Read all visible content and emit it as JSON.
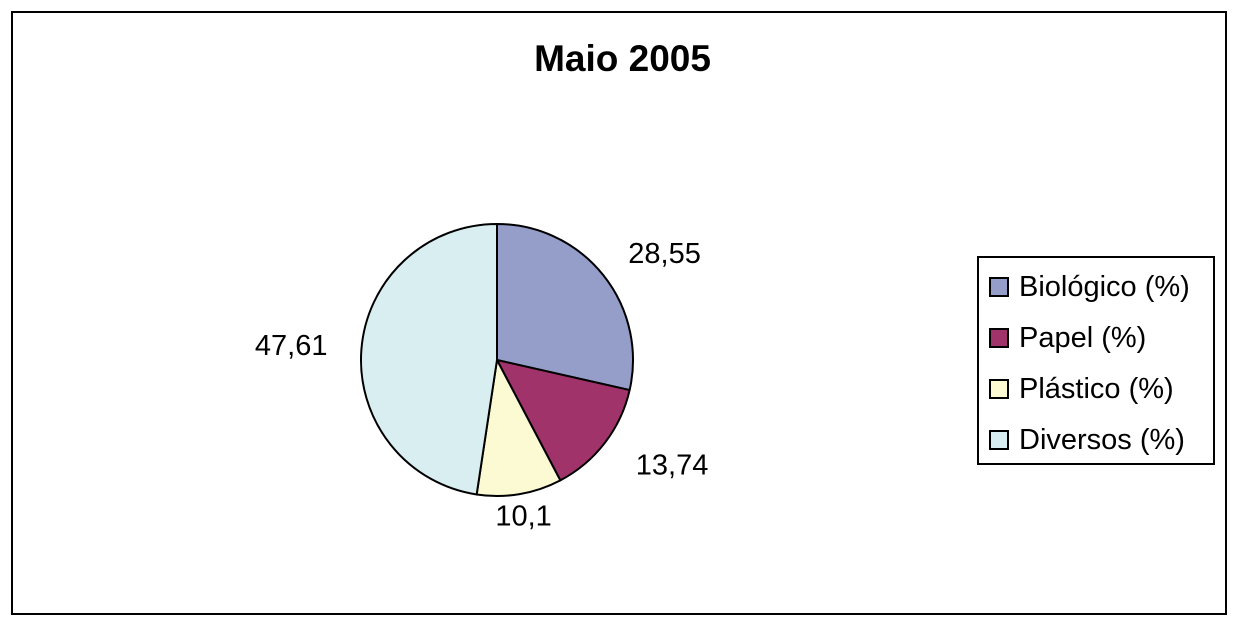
{
  "chart_data": {
    "type": "pie",
    "title": "Maio 2005",
    "categories": [
      "Biológico (%)",
      "Papel (%)",
      "Plástico (%)",
      "Diversos (%)"
    ],
    "values": [
      28.55,
      13.74,
      10.1,
      47.61
    ],
    "value_labels": [
      "28,55",
      "13,74",
      "10,1",
      "47,61"
    ],
    "colors": [
      "#959dc9",
      "#a1336b",
      "#fbfad2",
      "#d9eef0"
    ],
    "start_angle": "12 o'clock",
    "direction": "clockwise",
    "legend_position": "right"
  }
}
